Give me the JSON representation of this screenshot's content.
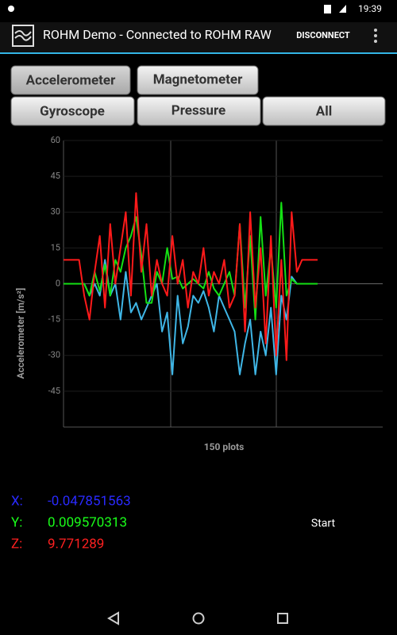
{
  "status_bar": {
    "time": "19:39"
  },
  "app_bar": {
    "title": "ROHM Demo - Connected to ROHM RAW",
    "action": "DISCONNECT"
  },
  "tabs": [
    "Accelerometer",
    "Magnetometer",
    "Gyroscope",
    "Pressure",
    "All"
  ],
  "chart_data": {
    "type": "line",
    "y_label": "Accelerometer [m/s²]",
    "x_label": "150 plots",
    "series": [
      {
        "color": "#3fb6e6",
        "values": [
          0,
          0,
          0,
          0,
          0,
          -5,
          0,
          -5,
          10,
          -5,
          0,
          -15,
          5,
          -12,
          -8,
          -15,
          -10,
          -5,
          0,
          -20,
          -12,
          -38,
          -5,
          -25,
          -18,
          -5,
          -8,
          -3,
          -10,
          -20,
          -5,
          -10,
          -15,
          -20,
          -38,
          -25,
          -15,
          -38,
          -20,
          -30,
          -10,
          -38,
          -5,
          -15,
          3,
          0,
          0,
          0,
          0,
          0
        ]
      },
      {
        "color": "#14e014",
        "values": [
          0,
          0,
          0,
          0,
          0,
          -5,
          5,
          -3,
          8,
          -5,
          10,
          5,
          15,
          20,
          28,
          12,
          -8,
          -8,
          5,
          0,
          15,
          2,
          3,
          -2,
          0,
          2,
          0,
          -2,
          5,
          -2,
          -5,
          0,
          5,
          -5,
          25,
          -10,
          20,
          -15,
          28,
          -5,
          15,
          -10,
          34,
          -5,
          2,
          0,
          0,
          0,
          0,
          0
        ]
      },
      {
        "color": "#ff1a1a",
        "values": [
          10,
          10,
          10,
          10,
          -5,
          -15,
          5,
          20,
          -10,
          25,
          0,
          15,
          30,
          -5,
          38,
          5,
          25,
          -5,
          10,
          0,
          -5,
          20,
          0,
          10,
          -10,
          5,
          0,
          15,
          -5,
          5,
          0,
          10,
          -10,
          -5,
          25,
          -20,
          30,
          -10,
          15,
          -25,
          20,
          -30,
          10,
          -32,
          30,
          5,
          10,
          10,
          10,
          10
        ]
      }
    ],
    "ylim": [
      -60,
      60
    ],
    "yticks": [
      60,
      45,
      30,
      15,
      0,
      -15,
      -30,
      -45
    ],
    "grid": true
  },
  "readings": [
    {
      "label": "X:",
      "value": "-0.047851563",
      "color": "#2a2aff"
    },
    {
      "label": "Y:",
      "value": "0.009570313",
      "color": "#1aff1a"
    },
    {
      "label": "Z:",
      "value": "9.771289",
      "color": "#ff2020"
    }
  ],
  "start_button": "Start"
}
